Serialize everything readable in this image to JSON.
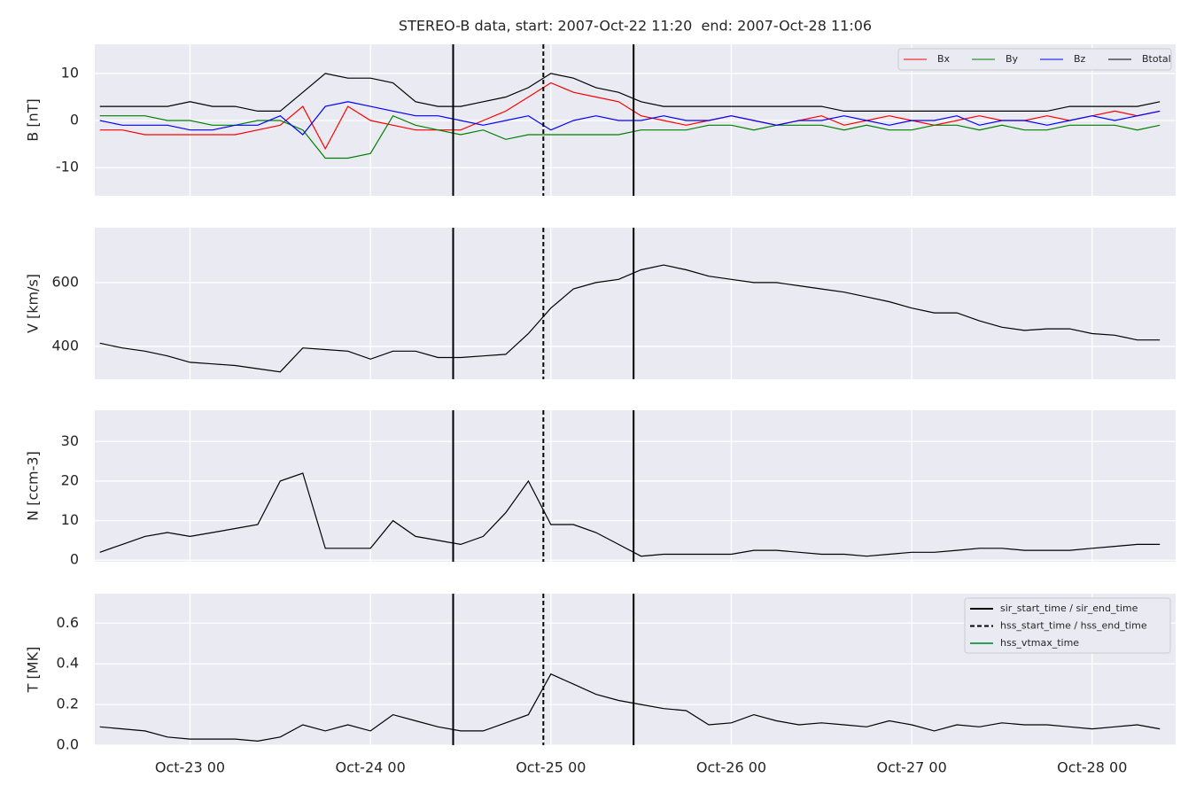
{
  "chart_data": [
    {
      "type": "line",
      "title": "STEREO-B data, start: 2007-Oct-22 11:20  end: 2007-Oct-28 11:06",
      "ylabel": "B [nT]",
      "xlim": [
        "2007-Oct-22 11:20",
        "2007-Oct-28 11:06"
      ],
      "xticks": [
        "Oct-23 00",
        "Oct-24 00",
        "Oct-25 00",
        "Oct-26 00",
        "Oct-27 00",
        "Oct-28 00"
      ],
      "ylim": [
        -16,
        16.2
      ],
      "yticks": [
        -10,
        0,
        10
      ],
      "grid": true,
      "legend": "upper right",
      "x": [
        "Oct-22 12",
        "Oct-22 15",
        "Oct-22 18",
        "Oct-22 21",
        "Oct-23 00",
        "Oct-23 03",
        "Oct-23 06",
        "Oct-23 09",
        "Oct-23 12",
        "Oct-23 15",
        "Oct-23 18",
        "Oct-23 21",
        "Oct-24 00",
        "Oct-24 03",
        "Oct-24 06",
        "Oct-24 09",
        "Oct-24 12",
        "Oct-24 15",
        "Oct-24 18",
        "Oct-24 21",
        "Oct-25 00",
        "Oct-25 03",
        "Oct-25 06",
        "Oct-25 09",
        "Oct-25 12",
        "Oct-25 15",
        "Oct-25 18",
        "Oct-25 21",
        "Oct-26 00",
        "Oct-26 03",
        "Oct-26 06",
        "Oct-26 09",
        "Oct-26 12",
        "Oct-26 15",
        "Oct-26 18",
        "Oct-26 21",
        "Oct-27 00",
        "Oct-27 03",
        "Oct-27 06",
        "Oct-27 09",
        "Oct-27 12",
        "Oct-27 15",
        "Oct-27 18",
        "Oct-27 21",
        "Oct-28 00",
        "Oct-28 03",
        "Oct-28 06",
        "Oct-28 09"
      ],
      "series": [
        {
          "name": "Bx",
          "color": "#ff0000",
          "values": [
            -2,
            -2,
            -3,
            -3,
            -3,
            -3,
            -3,
            -2,
            -1,
            3,
            -6,
            3,
            0,
            -1,
            -2,
            -2,
            -2,
            0,
            2,
            5,
            8,
            6,
            5,
            4,
            1,
            0,
            -1,
            0,
            1,
            0,
            -1,
            0,
            1,
            -1,
            0,
            1,
            0,
            -1,
            0,
            1,
            0,
            0,
            1,
            0,
            1,
            2,
            1,
            2
          ]
        },
        {
          "name": "By",
          "color": "#008000",
          "values": [
            1,
            1,
            1,
            0,
            0,
            -1,
            -1,
            0,
            0,
            -2,
            -8,
            -8,
            -7,
            1,
            -1,
            -2,
            -3,
            -2,
            -4,
            -3,
            -3,
            -3,
            -3,
            -3,
            -2,
            -2,
            -2,
            -1,
            -1,
            -2,
            -1,
            -1,
            -1,
            -2,
            -1,
            -2,
            -2,
            -1,
            -1,
            -2,
            -1,
            -2,
            -2,
            -1,
            -1,
            -1,
            -2,
            -1
          ]
        },
        {
          "name": "Bz",
          "color": "#0000ff",
          "values": [
            0,
            -1,
            -1,
            -1,
            -2,
            -2,
            -1,
            -1,
            1,
            -3,
            3,
            4,
            3,
            2,
            1,
            1,
            0,
            -1,
            0,
            1,
            -2,
            0,
            1,
            0,
            0,
            1,
            0,
            0,
            1,
            0,
            -1,
            0,
            0,
            1,
            0,
            -1,
            0,
            0,
            1,
            -1,
            0,
            0,
            -1,
            0,
            1,
            0,
            1,
            2
          ]
        },
        {
          "name": "Btotal",
          "color": "#000000",
          "values": [
            3,
            3,
            3,
            3,
            4,
            3,
            3,
            2,
            2,
            6,
            10,
            9,
            9,
            8,
            4,
            3,
            3,
            4,
            5,
            7,
            10,
            9,
            7,
            6,
            4,
            3,
            3,
            3,
            3,
            3,
            3,
            3,
            3,
            2,
            2,
            2,
            2,
            2,
            2,
            2,
            2,
            2,
            2,
            3,
            3,
            3,
            3,
            4
          ]
        }
      ]
    },
    {
      "type": "line",
      "ylabel": "V [km/s]",
      "xlim": [
        "2007-Oct-22 11:20",
        "2007-Oct-28 11:06"
      ],
      "xticks": [
        "Oct-23 00",
        "Oct-24 00",
        "Oct-25 00",
        "Oct-26 00",
        "Oct-27 00",
        "Oct-28 00"
      ],
      "ylim": [
        297,
        772
      ],
      "yticks": [
        400,
        600
      ],
      "grid": true,
      "x": [
        "Oct-22 12",
        "Oct-22 15",
        "Oct-22 18",
        "Oct-22 21",
        "Oct-23 00",
        "Oct-23 03",
        "Oct-23 06",
        "Oct-23 09",
        "Oct-23 12",
        "Oct-23 15",
        "Oct-23 18",
        "Oct-23 21",
        "Oct-24 00",
        "Oct-24 03",
        "Oct-24 06",
        "Oct-24 09",
        "Oct-24 12",
        "Oct-24 15",
        "Oct-24 18",
        "Oct-24 21",
        "Oct-25 00",
        "Oct-25 03",
        "Oct-25 06",
        "Oct-25 09",
        "Oct-25 12",
        "Oct-25 15",
        "Oct-25 18",
        "Oct-25 21",
        "Oct-26 00",
        "Oct-26 03",
        "Oct-26 06",
        "Oct-26 09",
        "Oct-26 12",
        "Oct-26 15",
        "Oct-26 18",
        "Oct-26 21",
        "Oct-27 00",
        "Oct-27 03",
        "Oct-27 06",
        "Oct-27 09",
        "Oct-27 12",
        "Oct-27 15",
        "Oct-27 18",
        "Oct-27 21",
        "Oct-28 00",
        "Oct-28 03",
        "Oct-28 06",
        "Oct-28 09"
      ],
      "series": [
        {
          "color": "#000000",
          "values": [
            410,
            395,
            385,
            370,
            350,
            345,
            340,
            330,
            320,
            395,
            390,
            385,
            360,
            385,
            385,
            365,
            365,
            370,
            375,
            440,
            520,
            580,
            600,
            610,
            640,
            655,
            640,
            620,
            610,
            600,
            600,
            590,
            580,
            570,
            555,
            540,
            520,
            505,
            505,
            480,
            460,
            450,
            455,
            455,
            440,
            435,
            420,
            420
          ]
        }
      ]
    },
    {
      "type": "line",
      "ylabel": "N [ccm-3]",
      "xlim": [
        "2007-Oct-22 11:20",
        "2007-Oct-28 11:06"
      ],
      "xticks": [
        "Oct-23 00",
        "Oct-24 00",
        "Oct-25 00",
        "Oct-26 00",
        "Oct-27 00",
        "Oct-28 00"
      ],
      "ylim": [
        -0.4,
        37.9
      ],
      "yticks": [
        0,
        10,
        20,
        30
      ],
      "grid": true,
      "x": [
        "Oct-22 12",
        "Oct-22 15",
        "Oct-22 18",
        "Oct-22 21",
        "Oct-23 00",
        "Oct-23 03",
        "Oct-23 06",
        "Oct-23 09",
        "Oct-23 12",
        "Oct-23 15",
        "Oct-23 18",
        "Oct-23 21",
        "Oct-24 00",
        "Oct-24 03",
        "Oct-24 06",
        "Oct-24 09",
        "Oct-24 12",
        "Oct-24 15",
        "Oct-24 18",
        "Oct-24 21",
        "Oct-25 00",
        "Oct-25 03",
        "Oct-25 06",
        "Oct-25 09",
        "Oct-25 12",
        "Oct-25 15",
        "Oct-25 18",
        "Oct-25 21",
        "Oct-26 00",
        "Oct-26 03",
        "Oct-26 06",
        "Oct-26 09",
        "Oct-26 12",
        "Oct-26 15",
        "Oct-26 18",
        "Oct-26 21",
        "Oct-27 00",
        "Oct-27 03",
        "Oct-27 06",
        "Oct-27 09",
        "Oct-27 12",
        "Oct-27 15",
        "Oct-27 18",
        "Oct-27 21",
        "Oct-28 00",
        "Oct-28 03",
        "Oct-28 06",
        "Oct-28 09"
      ],
      "series": [
        {
          "color": "#000000",
          "values": [
            2,
            4,
            6,
            7,
            6,
            7,
            8,
            9,
            20,
            22,
            3,
            3,
            3,
            10,
            6,
            5,
            4,
            6,
            12,
            20,
            9,
            9,
            7,
            4,
            1,
            1.5,
            1.5,
            1.5,
            1.5,
            2.5,
            2.5,
            2,
            1.5,
            1.5,
            1,
            1.5,
            2,
            2,
            2.5,
            3,
            3,
            2.5,
            2.5,
            2.5,
            3,
            3.5,
            4,
            4
          ]
        }
      ]
    },
    {
      "type": "line",
      "ylabel": "T [MK]",
      "xlim": [
        "2007-Oct-22 11:20",
        "2007-Oct-28 11:06"
      ],
      "xticks": [
        "Oct-23 00",
        "Oct-24 00",
        "Oct-25 00",
        "Oct-26 00",
        "Oct-27 00",
        "Oct-28 00"
      ],
      "ylim": [
        0,
        0.745
      ],
      "yticks": [
        {
          "value": 0,
          "label": "0.0"
        },
        0.2,
        0.4,
        0.6
      ],
      "grid": true,
      "legend": "upper right",
      "x": [
        "Oct-22 12",
        "Oct-22 15",
        "Oct-22 18",
        "Oct-22 21",
        "Oct-23 00",
        "Oct-23 03",
        "Oct-23 06",
        "Oct-23 09",
        "Oct-23 12",
        "Oct-23 15",
        "Oct-23 18",
        "Oct-23 21",
        "Oct-24 00",
        "Oct-24 03",
        "Oct-24 06",
        "Oct-24 09",
        "Oct-24 12",
        "Oct-24 15",
        "Oct-24 18",
        "Oct-24 21",
        "Oct-25 00",
        "Oct-25 03",
        "Oct-25 06",
        "Oct-25 09",
        "Oct-25 12",
        "Oct-25 15",
        "Oct-25 18",
        "Oct-25 21",
        "Oct-26 00",
        "Oct-26 03",
        "Oct-26 06",
        "Oct-26 09",
        "Oct-26 12",
        "Oct-26 15",
        "Oct-26 18",
        "Oct-26 21",
        "Oct-27 00",
        "Oct-27 03",
        "Oct-27 06",
        "Oct-27 09",
        "Oct-27 12",
        "Oct-27 15",
        "Oct-27 18",
        "Oct-27 21",
        "Oct-28 00",
        "Oct-28 03",
        "Oct-28 06",
        "Oct-28 09"
      ],
      "series": [
        {
          "color": "#000000",
          "values": [
            0.09,
            0.08,
            0.07,
            0.04,
            0.03,
            0.03,
            0.03,
            0.02,
            0.04,
            0.1,
            0.07,
            0.1,
            0.07,
            0.15,
            0.12,
            0.09,
            0.07,
            0.07,
            0.11,
            0.15,
            0.35,
            0.3,
            0.25,
            0.22,
            0.2,
            0.18,
            0.17,
            0.1,
            0.11,
            0.15,
            0.12,
            0.1,
            0.11,
            0.1,
            0.09,
            0.12,
            0.1,
            0.07,
            0.1,
            0.09,
            0.11,
            0.1,
            0.1,
            0.09,
            0.08,
            0.09,
            0.1,
            0.08
          ]
        }
      ],
      "events": [
        {
          "name": "sir_start_time / sir_end_time",
          "color": "#000000",
          "dashed": false,
          "x": [
            "Oct-24 11",
            "Oct-25 11"
          ]
        },
        {
          "name": "hss_start_time / hss_end_time",
          "color": "#000000",
          "dashed": true,
          "x": [
            "Oct-24 23"
          ]
        },
        {
          "name": "hss_vtmax_time",
          "color": "#2ca05a",
          "dashed": false,
          "x": []
        }
      ]
    }
  ]
}
